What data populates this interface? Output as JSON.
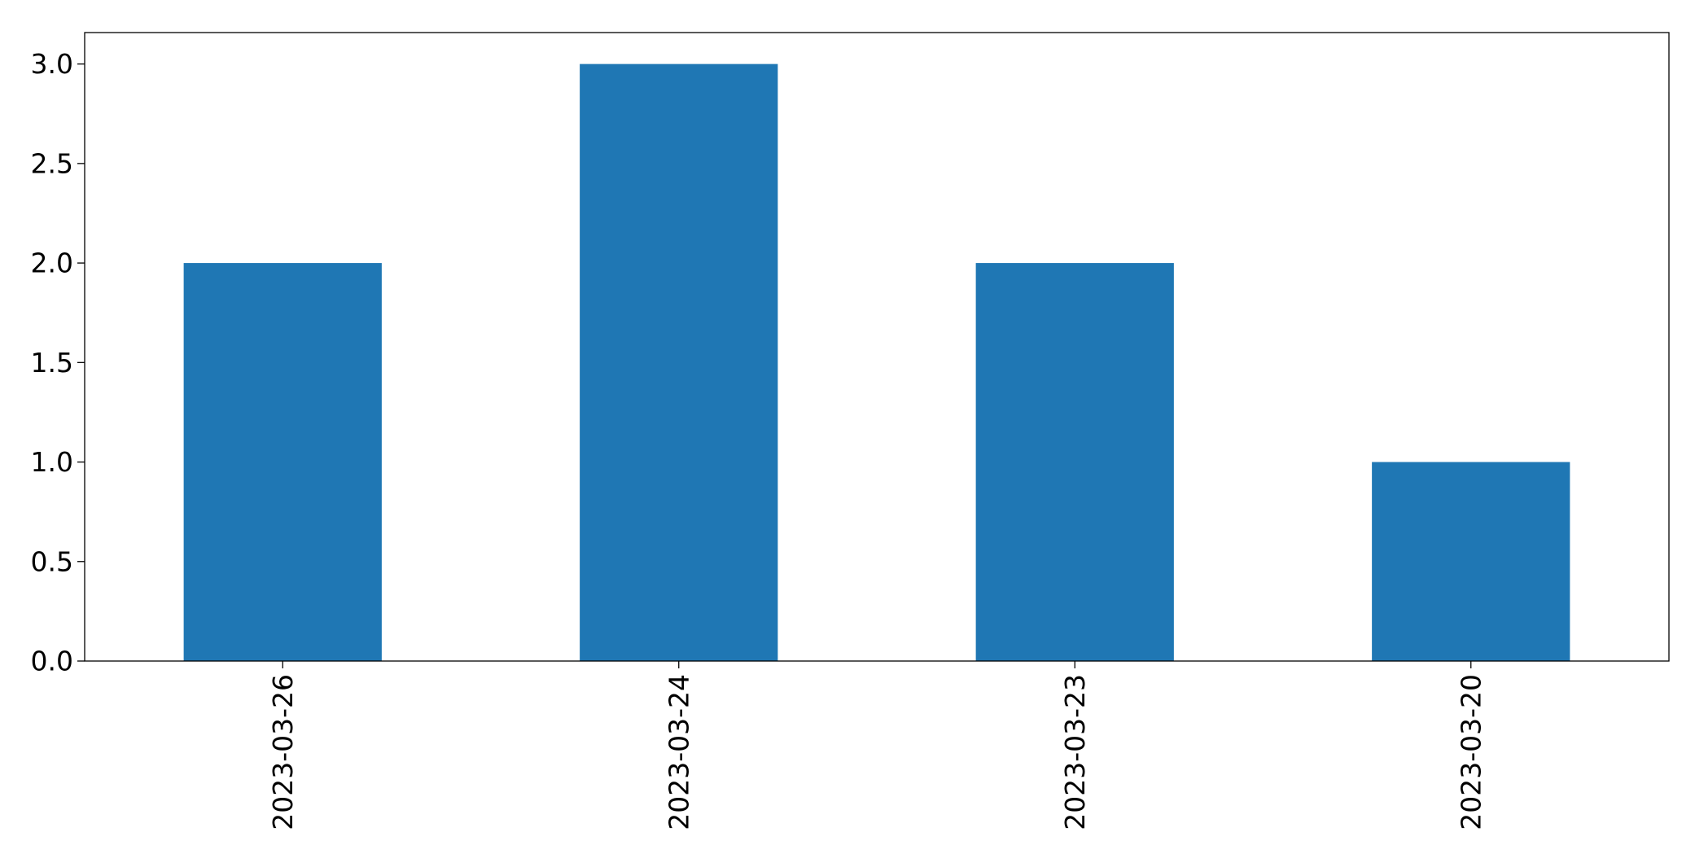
{
  "chart_data": {
    "type": "bar",
    "categories": [
      "2023-03-26",
      "2023-03-24",
      "2023-03-23",
      "2023-03-20"
    ],
    "values": [
      2,
      3,
      2,
      1
    ],
    "title": "",
    "xlabel": "",
    "ylabel": "",
    "ylim": [
      0,
      3.158
    ],
    "yticks": [
      0.0,
      0.5,
      1.0,
      1.5,
      2.0,
      2.5,
      3.0
    ],
    "ytick_labels": [
      "0.0",
      "0.5",
      "1.0",
      "1.5",
      "2.0",
      "2.5",
      "3.0"
    ],
    "bar_color": "#1f77b4",
    "grid": false,
    "legend": "none",
    "xtick_rotation": "vertical"
  }
}
